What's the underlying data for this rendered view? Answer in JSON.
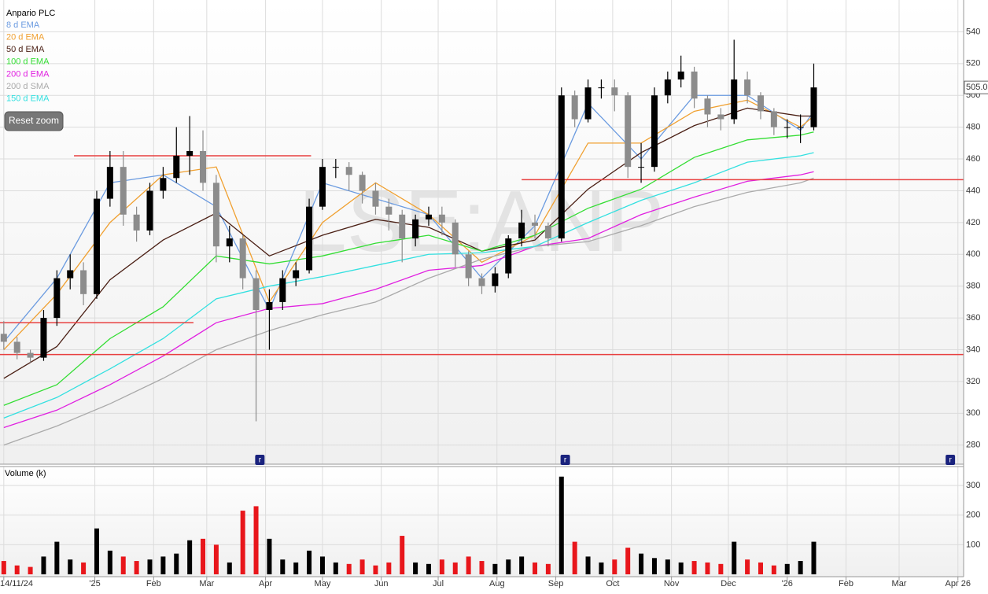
{
  "chart_data": [
    {
      "type": "candlestick",
      "title": "Anpario PLC",
      "watermark": "LSE:ANP",
      "button": "Reset zoom",
      "x": [
        0,
        7,
        14,
        21,
        28,
        35,
        42,
        49,
        56,
        63,
        70,
        77,
        84,
        91,
        98,
        105,
        112,
        119,
        126,
        133,
        140,
        147,
        154,
        161,
        168,
        175,
        182,
        189,
        196,
        203,
        210,
        217,
        224,
        231,
        238,
        245,
        252,
        259,
        266,
        273,
        280,
        287,
        294,
        301,
        308,
        315,
        322,
        329,
        336,
        343,
        350,
        357,
        364,
        371,
        378,
        385,
        392,
        399,
        406,
        413,
        420,
        427
      ],
      "open": [
        350,
        345,
        338,
        335,
        360,
        385,
        390,
        375,
        435,
        455,
        425,
        415,
        440,
        448,
        462,
        465,
        445,
        405,
        410,
        385,
        365,
        370,
        385,
        390,
        430,
        455,
        455,
        450,
        440,
        430,
        425,
        410,
        422,
        425,
        420,
        400,
        385,
        380,
        388,
        410,
        420,
        418,
        410,
        500,
        485,
        505,
        505,
        500,
        455,
        455,
        500,
        510,
        515,
        498,
        488,
        485,
        510,
        500,
        490,
        480,
        480,
        480
      ],
      "high": [
        358,
        348,
        340,
        365,
        390,
        400,
        395,
        440,
        465,
        465,
        430,
        445,
        455,
        480,
        487,
        478,
        450,
        418,
        412,
        390,
        378,
        390,
        395,
        435,
        460,
        460,
        458,
        452,
        445,
        435,
        428,
        425,
        430,
        430,
        422,
        402,
        388,
        392,
        412,
        428,
        425,
        420,
        505,
        503,
        510,
        510,
        510,
        502,
        470,
        505,
        515,
        525,
        518,
        500,
        492,
        535,
        515,
        502,
        492,
        485,
        488,
        520
      ],
      "low": [
        340,
        334,
        332,
        333,
        355,
        378,
        368,
        372,
        430,
        418,
        408,
        412,
        435,
        445,
        450,
        440,
        395,
        395,
        378,
        295,
        340,
        365,
        380,
        388,
        428,
        448,
        440,
        432,
        425,
        415,
        395,
        405,
        418,
        412,
        392,
        380,
        375,
        376,
        385,
        405,
        410,
        405,
        408,
        480,
        483,
        498,
        490,
        448,
        445,
        452,
        495,
        505,
        492,
        480,
        478,
        482,
        495,
        485,
        475,
        473,
        470,
        478
      ],
      "close": [
        345,
        338,
        335,
        360,
        385,
        390,
        375,
        435,
        455,
        425,
        415,
        440,
        448,
        462,
        465,
        445,
        405,
        410,
        385,
        365,
        370,
        385,
        390,
        430,
        455,
        455,
        450,
        440,
        430,
        425,
        410,
        422,
        425,
        420,
        400,
        385,
        380,
        388,
        410,
        420,
        418,
        410,
        500,
        485,
        505,
        505,
        500,
        455,
        455,
        500,
        510,
        515,
        498,
        488,
        485,
        510,
        500,
        490,
        480,
        480,
        480,
        505
      ],
      "up_color": "#000000",
      "down_color": "#8c8c8c",
      "xlim": [
        -2,
        506
      ],
      "ylim": [
        268,
        560
      ],
      "yticks": [
        280,
        300,
        320,
        340,
        360,
        380,
        400,
        420,
        440,
        460,
        480,
        500,
        520,
        540
      ],
      "xticks": [
        {
          "value": 0,
          "label": "14/11/24"
        },
        {
          "value": 48,
          "label": "'25"
        },
        {
          "value": 79,
          "label": "Feb"
        },
        {
          "value": 107,
          "label": "Mar"
        },
        {
          "value": 138,
          "label": "Apr"
        },
        {
          "value": 168,
          "label": "May"
        },
        {
          "value": 199,
          "label": "Jun"
        },
        {
          "value": 229,
          "label": "Jul"
        },
        {
          "value": 260,
          "label": "Aug"
        },
        {
          "value": 291,
          "label": "Sep"
        },
        {
          "value": 321,
          "label": "Oct"
        },
        {
          "value": 352,
          "label": "Nov"
        },
        {
          "value": 382,
          "label": "Dec"
        },
        {
          "value": 413,
          "label": "'26"
        },
        {
          "value": 444,
          "label": "Feb"
        },
        {
          "value": 472,
          "label": "Mar"
        },
        {
          "value": 503,
          "label": "Apr 26"
        }
      ],
      "grid": true,
      "lines": [
        {
          "name": "8 d EMA",
          "color": "#6b9be0",
          "x": [
            0,
            28,
            56,
            84,
            112,
            140,
            168,
            196,
            224,
            252,
            280,
            308,
            336,
            364,
            392,
            420,
            427
          ],
          "values": [
            345,
            385,
            445,
            450,
            430,
            365,
            445,
            435,
            425,
            385,
            418,
            495,
            460,
            500,
            500,
            478,
            490
          ]
        },
        {
          "name": "20 d EMA",
          "color": "#f0a030",
          "x": [
            0,
            28,
            56,
            84,
            112,
            140,
            168,
            196,
            224,
            252,
            280,
            308,
            336,
            364,
            392,
            420,
            427
          ],
          "values": [
            340,
            375,
            420,
            450,
            455,
            370,
            420,
            445,
            425,
            395,
            412,
            470,
            470,
            490,
            497,
            480,
            487
          ]
        },
        {
          "name": "50 d EMA",
          "color": "#4a1f14",
          "x": [
            0,
            28,
            56,
            84,
            112,
            140,
            168,
            196,
            224,
            252,
            280,
            308,
            336,
            364,
            392,
            420,
            427
          ],
          "values": [
            322,
            342,
            384,
            409,
            426,
            399,
            412,
            422,
            417,
            402,
            409,
            441,
            464,
            481,
            492,
            487,
            487
          ]
        },
        {
          "name": "100 d EMA",
          "color": "#33dd33",
          "x": [
            0,
            28,
            56,
            84,
            112,
            140,
            168,
            196,
            224,
            252,
            280,
            308,
            336,
            364,
            392,
            420,
            427
          ],
          "values": [
            305,
            318,
            347,
            367,
            399,
            394,
            399,
            407,
            412,
            402,
            412,
            429,
            441,
            461,
            472,
            475,
            477
          ]
        },
        {
          "name": "200 d EMA",
          "color": "#e020e0",
          "x": [
            0,
            28,
            56,
            84,
            112,
            140,
            168,
            196,
            224,
            252,
            280,
            308,
            336,
            364,
            392,
            420,
            427
          ],
          "values": [
            291,
            302,
            318,
            336,
            357,
            366,
            369,
            378,
            390,
            393,
            405,
            410,
            425,
            436,
            446,
            450,
            452
          ]
        },
        {
          "name": "200 d SMA",
          "color": "#aaaaaa",
          "x": [
            0,
            28,
            56,
            84,
            112,
            140,
            168,
            196,
            224,
            252,
            280,
            308,
            336,
            364,
            392,
            420,
            427
          ],
          "values": [
            280,
            292,
            306,
            322,
            340,
            352,
            362,
            370,
            385,
            397,
            405,
            408,
            418,
            430,
            439,
            445,
            448
          ]
        },
        {
          "name": "150 d EMA",
          "color": "#33e0e0",
          "x": [
            0,
            28,
            56,
            84,
            112,
            140,
            168,
            196,
            224,
            252,
            280,
            308,
            336,
            364,
            392,
            420,
            427
          ],
          "values": [
            297,
            310,
            328,
            347,
            372,
            380,
            386,
            393,
            400,
            401,
            405,
            420,
            434,
            445,
            458,
            462,
            464
          ]
        }
      ],
      "hlines": [
        {
          "value": 462,
          "x": [
            37,
            162
          ]
        },
        {
          "value": 447,
          "x": [
            273,
            506
          ]
        },
        {
          "value": 357,
          "x": [
            -2,
            100
          ]
        },
        {
          "value": 337,
          "x": [
            -2,
            506
          ]
        }
      ],
      "hline_color": "#e84040",
      "markers": [
        {
          "x": 135,
          "label": "r"
        },
        {
          "x": 296,
          "label": "r"
        },
        {
          "x": 499,
          "label": "r"
        }
      ],
      "last_price": {
        "value": 505,
        "label": "505.0"
      }
    },
    {
      "type": "bar",
      "title": "Volume (k)",
      "x": [
        0,
        7,
        14,
        21,
        28,
        35,
        42,
        49,
        56,
        63,
        70,
        77,
        84,
        91,
        98,
        105,
        112,
        119,
        126,
        133,
        140,
        147,
        154,
        161,
        168,
        175,
        182,
        189,
        196,
        203,
        210,
        217,
        224,
        231,
        238,
        245,
        252,
        259,
        266,
        273,
        280,
        287,
        294,
        301,
        308,
        315,
        322,
        329,
        336,
        343,
        350,
        357,
        364,
        371,
        378,
        385,
        392,
        399,
        406,
        413,
        420,
        427
      ],
      "values": [
        45,
        30,
        25,
        60,
        110,
        50,
        40,
        155,
        80,
        60,
        45,
        50,
        60,
        70,
        115,
        120,
        100,
        40,
        215,
        230,
        120,
        50,
        40,
        80,
        60,
        40,
        35,
        50,
        30,
        40,
        130,
        40,
        35,
        50,
        40,
        60,
        45,
        35,
        50,
        60,
        40,
        35,
        330,
        110,
        60,
        40,
        50,
        90,
        70,
        55,
        50,
        40,
        45,
        40,
        35,
        110,
        50,
        40,
        30,
        35,
        45,
        110
      ],
      "up_color": "#000000",
      "down_color": "#e8161b",
      "ylim": [
        0,
        364
      ],
      "yticks": [
        100,
        200,
        300
      ]
    }
  ]
}
